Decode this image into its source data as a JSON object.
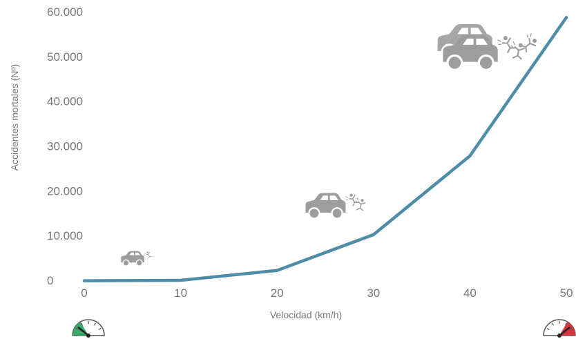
{
  "chart_data": {
    "type": "line",
    "title": "",
    "xlabel": "Velocidad (km/h)",
    "ylabel": "Accidentes mortales (Nº)",
    "x": [
      0,
      10,
      20,
      30,
      40,
      50
    ],
    "y_tick_labels": [
      "0",
      "10.000",
      "20.000",
      "30.000",
      "40.000",
      "50.000",
      "60.000"
    ],
    "x_tick_labels": [
      "0",
      "10",
      "20",
      "30",
      "40",
      "50"
    ],
    "xlim": [
      0,
      50
    ],
    "ylim": [
      0,
      60000
    ],
    "grid": false,
    "series": [
      {
        "values": [
          -100,
          0,
          2200,
          10200,
          27800,
          58700
        ],
        "color": "#4f8ca8"
      }
    ],
    "annotations": [
      {
        "icon": "car-crash-icon",
        "x": 5,
        "y": 4500,
        "scale": 0.55
      },
      {
        "icon": "car-crash-icon",
        "x": 25,
        "y": 16000,
        "scale": 0.95
      },
      {
        "icon": "car-crash-icon",
        "x": 40,
        "y": 50000,
        "scale": 1.3
      }
    ],
    "gauges": [
      {
        "icon": "speedometer-low-icon",
        "position": "bottom-left",
        "level": "low",
        "color": "#3aa86b"
      },
      {
        "icon": "speedometer-high-icon",
        "position": "bottom-right",
        "level": "high",
        "color": "#d6343d"
      }
    ],
    "icon_color": "#9d9d9d"
  }
}
